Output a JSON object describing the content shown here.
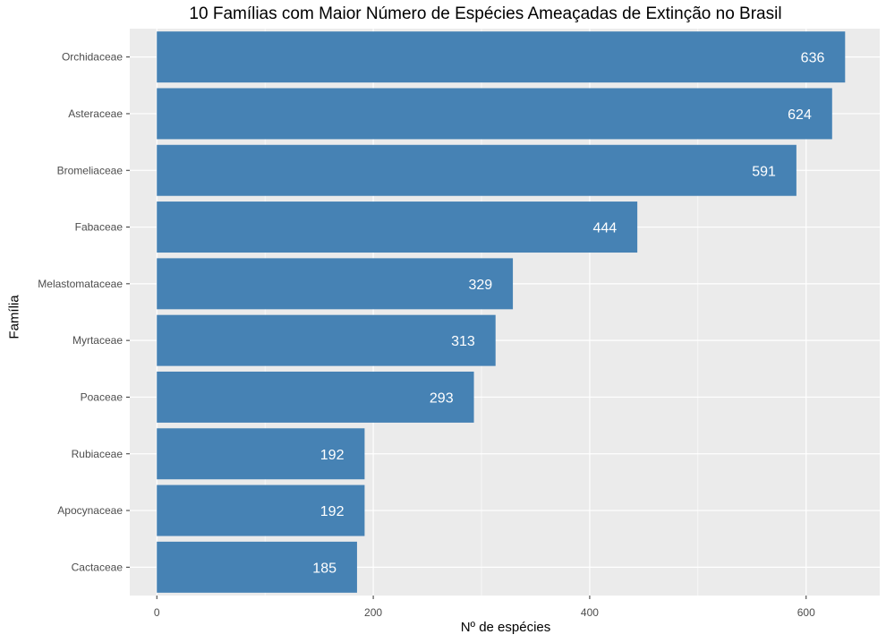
{
  "chart_data": {
    "type": "bar",
    "orientation": "horizontal",
    "title": "10 Famílias com Maior Número de Espécies Ameaçadas de Extinção no Brasil",
    "xlabel": "Nº de espécies",
    "ylabel": "Família",
    "categories": [
      "Orchidaceae",
      "Asteraceae",
      "Bromeliaceae",
      "Fabaceae",
      "Melastomataceae",
      "Myrtaceae",
      "Poaceae",
      "Rubiaceae",
      "Apocynaceae",
      "Cactaceae"
    ],
    "values": [
      636,
      624,
      591,
      444,
      329,
      313,
      293,
      192,
      192,
      185
    ],
    "x_ticks": [
      0,
      200,
      400,
      600
    ],
    "xlim": [
      -25,
      668
    ],
    "grid": true,
    "colors": {
      "bar": "#4682B4",
      "panel": "#EBEBEB",
      "grid": "#FFFFFF",
      "bar_label": "#FFFFFF"
    }
  }
}
